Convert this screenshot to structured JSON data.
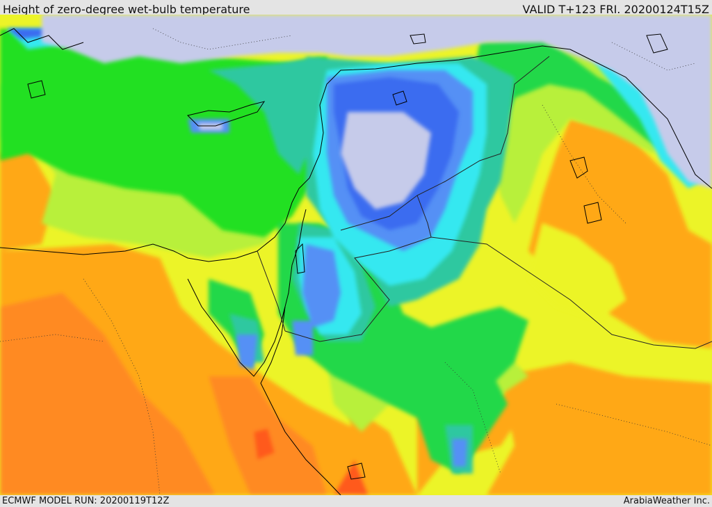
{
  "header": {
    "title": "Height of zero-degree wet-bulb temperature",
    "valid": "VALID T+123 FRI. 20200124T15Z"
  },
  "footer": {
    "model_run": "ECMWF MODEL RUN: 20200119T12Z",
    "credit": "ArabiaWeather Inc."
  },
  "palette": {
    "lowest": "#c6cbea",
    "low_blue": "#3a6cf0",
    "blue": "#5590f5",
    "cyan": "#35e8f0",
    "teal": "#2fc8a0",
    "green": "#24d84a",
    "bright_green": "#20e020",
    "yellow_green": "#b8f03a",
    "yellow": "#ecf428",
    "light_orange": "#ffd020",
    "orange": "#ffa818",
    "deep_orange": "#ff8a24",
    "red_orange": "#ff5a1a",
    "coast_line": "#000000",
    "border_line": "#222222"
  }
}
